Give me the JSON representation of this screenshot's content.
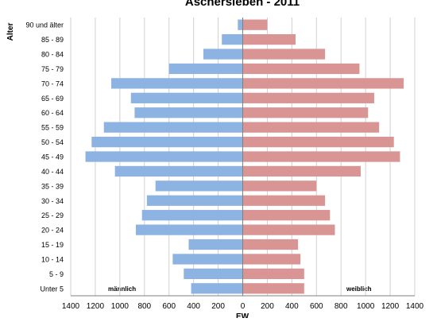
{
  "chart_data": {
    "type": "bar",
    "orientation": "horizontal",
    "layout": "population-pyramid",
    "title": "Aschersleben - 2011",
    "xlabel": "EW",
    "ylabel": "Alter",
    "xlim": [
      -1400,
      1400
    ],
    "x_ticks": [
      -1400,
      -1200,
      -1000,
      -800,
      -600,
      -400,
      -200,
      0,
      200,
      400,
      600,
      800,
      1000,
      1200,
      1400
    ],
    "x_tick_labels": [
      "1400",
      "1200",
      "1000",
      "800",
      "600",
      "400",
      "200",
      "0",
      "200",
      "400",
      "600",
      "800",
      "1000",
      "1200",
      "1400"
    ],
    "grid": true,
    "categories": [
      "90 und älter",
      "85 - 89",
      "80 - 84",
      "75 - 79",
      "70 - 74",
      "65 - 69",
      "60 - 64",
      "55 - 59",
      "50 - 54",
      "45 - 49",
      "40 - 44",
      "35 - 39",
      "30 - 34",
      "25 - 29",
      "20 - 24",
      "15 - 19",
      "10 - 14",
      "5 - 9",
      "Unter 5"
    ],
    "series": [
      {
        "name": "männlich",
        "color": "#8db3e2",
        "values": [
          40,
          170,
          320,
          600,
          1070,
          910,
          880,
          1130,
          1230,
          1280,
          1040,
          710,
          780,
          820,
          870,
          440,
          570,
          480,
          420
        ]
      },
      {
        "name": "weiblich",
        "color": "#d99594",
        "values": [
          200,
          430,
          670,
          950,
          1310,
          1070,
          1020,
          1110,
          1230,
          1280,
          960,
          600,
          670,
          710,
          750,
          450,
          470,
          500,
          500
        ]
      }
    ],
    "legend": "inside-bottom"
  }
}
